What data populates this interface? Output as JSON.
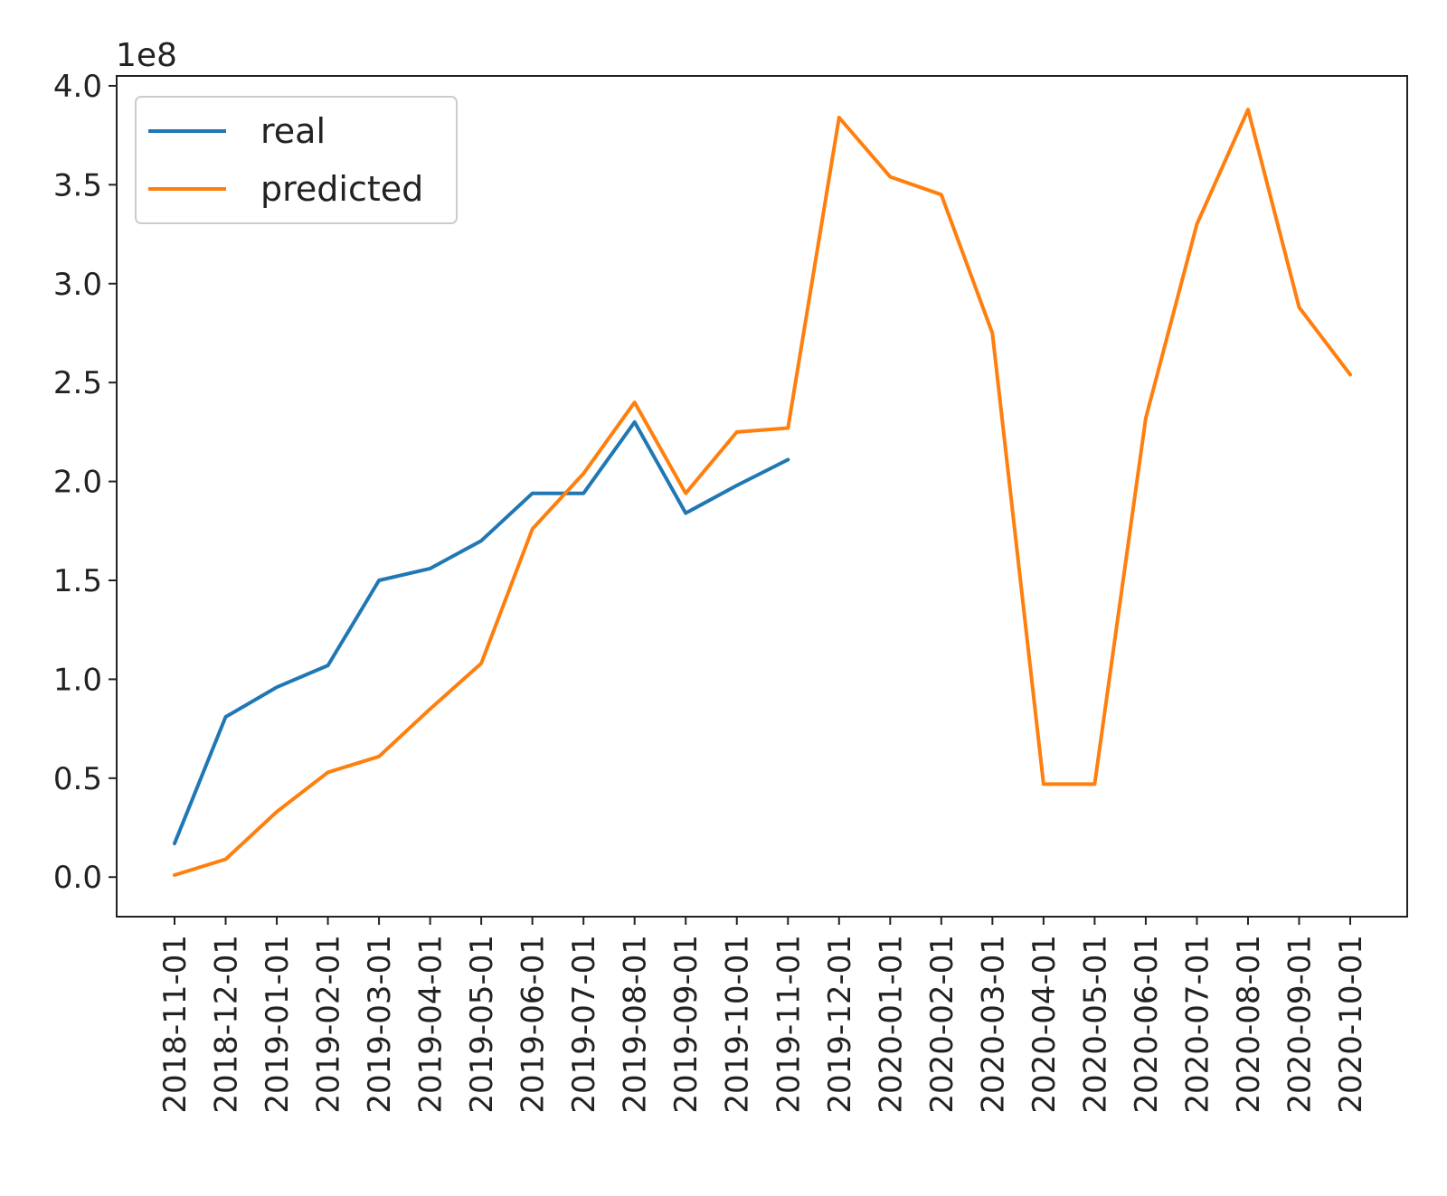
{
  "chart_data": {
    "type": "line",
    "title": "",
    "xlabel": "",
    "ylabel": "",
    "y_offset_label": "1e8",
    "categories": [
      "2018-11-01",
      "2018-12-01",
      "2019-01-01",
      "2019-02-01",
      "2019-03-01",
      "2019-04-01",
      "2019-05-01",
      "2019-06-01",
      "2019-07-01",
      "2019-08-01",
      "2019-09-01",
      "2019-10-01",
      "2019-11-01",
      "2019-12-01",
      "2020-01-01",
      "2020-02-01",
      "2020-03-01",
      "2020-04-01",
      "2020-05-01",
      "2020-06-01",
      "2020-07-01",
      "2020-08-01",
      "2020-09-01",
      "2020-10-01"
    ],
    "series": [
      {
        "name": "real",
        "color": "#1f77b4",
        "values": [
          0.17,
          0.81,
          0.96,
          1.07,
          1.5,
          1.56,
          1.7,
          1.94,
          1.94,
          2.3,
          1.84,
          1.98,
          2.11,
          null,
          null,
          null,
          null,
          null,
          null,
          null,
          null,
          null,
          null,
          null
        ]
      },
      {
        "name": "predicted",
        "color": "#ff7f0e",
        "values": [
          0.01,
          0.09,
          0.33,
          0.53,
          0.61,
          0.85,
          1.08,
          1.76,
          2.04,
          2.4,
          1.94,
          2.25,
          2.27,
          3.84,
          3.54,
          3.45,
          2.75,
          0.47,
          0.47,
          2.32,
          3.3,
          3.88,
          2.88,
          2.54
        ]
      }
    ],
    "yticks": [
      "0.0",
      "0.5",
      "1.0",
      "1.5",
      "2.0",
      "2.5",
      "3.0",
      "3.5",
      "4.0"
    ],
    "ylim": [
      -0.2,
      4.05
    ],
    "grid": false,
    "legend_position": "upper-left"
  }
}
